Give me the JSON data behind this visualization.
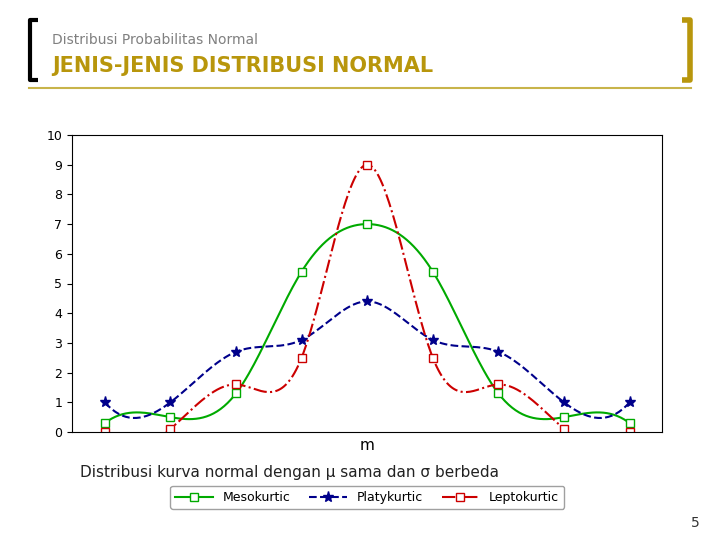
{
  "title_small": "Distribusi Probabilitas Normal",
  "title_large": "JENIS-JENIS DISTRIBUSI NORMAL",
  "subtitle_color": "#808080",
  "title_color": "#b8960c",
  "background_color": "#ffffff",
  "bracket_color_left": "#000000",
  "bracket_color_right": "#b8960c",
  "xlabel": "m",
  "ylim": [
    0,
    10
  ],
  "caption": "Distribusi kurva normal dengan μ sama dan σ berbeda",
  "page_number": "5",
  "mesokurtic_color": "#00aa00",
  "platykurtic_color": "#00008b",
  "leptokurtic_color": "#cc0000",
  "x_points": [
    -4,
    -3,
    -2,
    -1,
    0,
    1,
    2,
    3,
    4
  ],
  "mesokurtic_y": [
    0.3,
    0.5,
    1.3,
    5.4,
    7.0,
    5.4,
    1.3,
    0.5,
    0.3
  ],
  "platykurtic_y": [
    1.0,
    1.0,
    2.7,
    3.1,
    4.4,
    3.1,
    2.7,
    1.0,
    1.0
  ],
  "leptokurtic_y": [
    0.0,
    0.1,
    1.6,
    2.5,
    9.0,
    2.5,
    1.6,
    0.1,
    0.0
  ]
}
